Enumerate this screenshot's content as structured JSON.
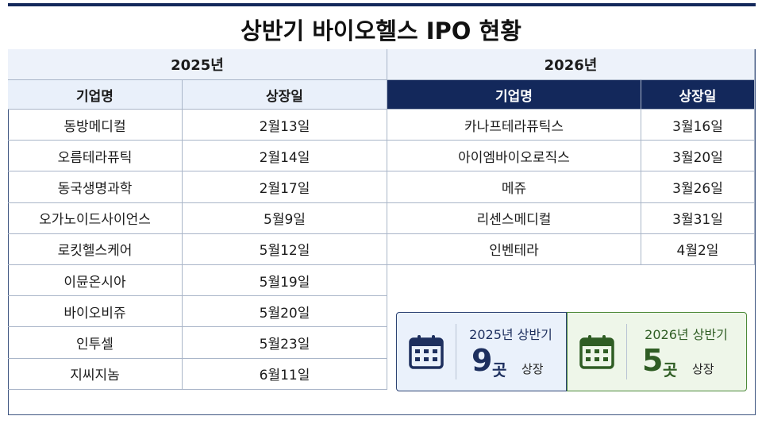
{
  "title": "상반기 바이오헬스 IPO 현황",
  "tables": [
    {
      "year": "2025년",
      "headers": [
        "기업명",
        "상장일"
      ],
      "rows": [
        [
          "동방메디컬",
          "2월13일"
        ],
        [
          "오름테라퓨틱",
          "2월14일"
        ],
        [
          "동국생명과학",
          "2월17일"
        ],
        [
          "오가노이드사이언스",
          "5월9일"
        ],
        [
          "로킷헬스케어",
          "5월12일"
        ],
        [
          "이뮨온시아",
          "5월19일"
        ],
        [
          "바이오비쥬",
          "5월20일"
        ],
        [
          "인투셀",
          "5월23일"
        ],
        [
          "지씨지놈",
          "6월11일"
        ]
      ]
    },
    {
      "year": "2026년",
      "headers": [
        "기업명",
        "상장일"
      ],
      "rows": [
        [
          "카나프테라퓨틱스",
          "3월16일"
        ],
        [
          "아이엠바이오로직스",
          "3월20일"
        ],
        [
          "메쥬",
          "3월26일"
        ],
        [
          "리센스메디컬",
          "3월31일"
        ],
        [
          "인벤테라",
          "4월2일"
        ]
      ]
    }
  ],
  "summary": [
    {
      "label": "2025년 상반기",
      "count": "9",
      "unit": "곳",
      "suffix": "상장"
    },
    {
      "label": "2026년 상반기",
      "count": "5",
      "unit": "곳",
      "suffix": "상장"
    }
  ]
}
